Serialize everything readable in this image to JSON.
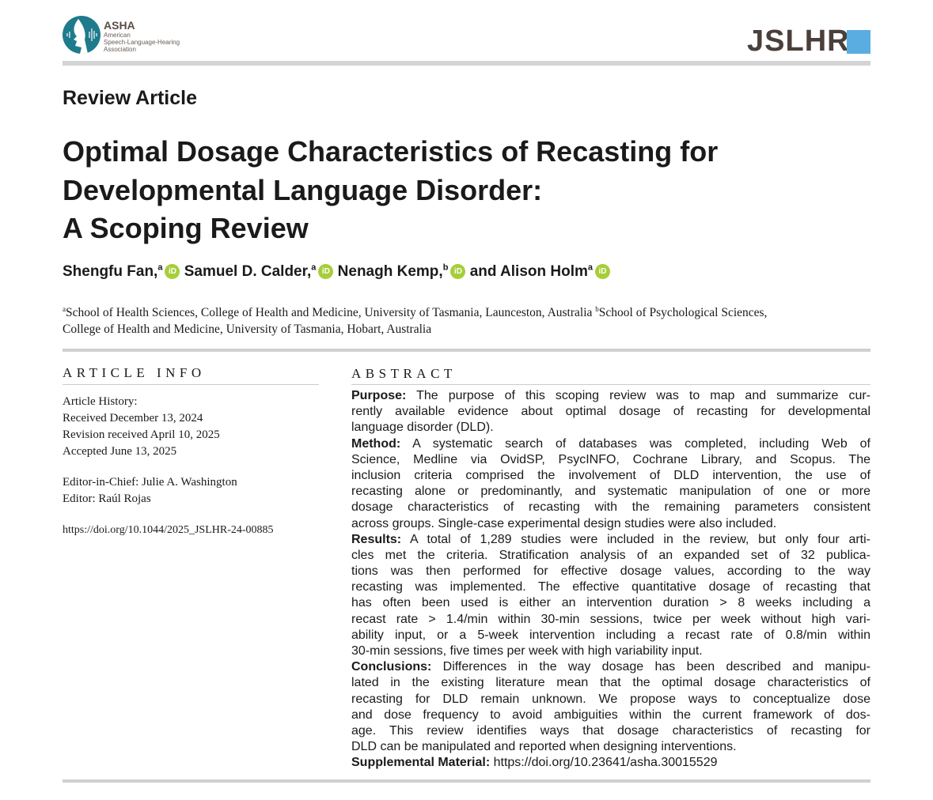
{
  "header": {
    "publisher_logo": "ASHA",
    "publisher_name_lines": [
      "American",
      "Speech-Language-Hearing",
      "Association"
    ],
    "journal_logo": "JSLHR",
    "colors": {
      "teal": "#1e7b8c",
      "journal_text": "#4a3f3a",
      "journal_square": "#5aade0"
    }
  },
  "article_type": "Review Article",
  "title_lines": [
    "Optimal Dosage Characteristics of Recasting for",
    "Developmental Language Disorder:",
    "A Scoping Review"
  ],
  "authors": [
    {
      "name": "Shengfu Fan,",
      "sup": "a"
    },
    {
      "name": "Samuel D. Calder,",
      "sup": "a"
    },
    {
      "name": "Nenagh Kemp,",
      "sup": "b"
    },
    {
      "name": "and Alison Holm",
      "sup": "a"
    }
  ],
  "orcid_label": "iD",
  "affiliations": {
    "a_sup": "a",
    "a": "School of Health Sciences, College of Health and Medicine, University of Tasmania, Launceston, Australia",
    "b_sup": "b",
    "b_line1": "School of Psychological Sciences,",
    "b_line2": "College of Health and Medicine, University of Tasmania, Hobart, Australia"
  },
  "article_info": {
    "heading": "ARTICLE INFO",
    "history_label": "Article History:",
    "received": "Received December 13, 2024",
    "revised": "Revision received April 10, 2025",
    "accepted": "Accepted June 13, 2025",
    "editor_in_chief": "Editor-in-Chief: Julie A. Washington",
    "editor": "Editor: Raúl Rojas",
    "doi": "https://doi.org/10.1044/2025_JSLHR-24-00885"
  },
  "abstract": {
    "heading": "ABSTRACT",
    "sections": [
      {
        "label": "Purpose:",
        "lines": [
          " The purpose of this scoping review was to map and summarize cur-",
          "rently available evidence about optimal dosage of recasting for developmental",
          "language disorder (DLD)."
        ]
      },
      {
        "label": "Method:",
        "lines": [
          " A systematic search of databases was completed, including Web of",
          "Science, Medline via OvidSP, PsycINFO, Cochrane Library, and Scopus. The",
          "inclusion criteria comprised the involvement of DLD intervention, the use of",
          "recasting alone or predominantly, and systematic manipulation of one or more",
          "dosage characteristics of recasting with the remaining parameters consistent",
          "across groups. Single-case experimental design studies were also included."
        ]
      },
      {
        "label": "Results:",
        "lines": [
          " A total of 1,289 studies were included in the review, but only four arti-",
          "cles met the criteria. Stratification analysis of an expanded set of 32 publica-",
          "tions was then performed for effective dosage values, according to the way",
          "recasting was implemented. The effective quantitative dosage of recasting that",
          "has often been used is either an intervention duration > 8 weeks including a",
          "recast rate > 1.4/min within 30-min sessions, twice per week without high vari-",
          "ability input, or a 5-week intervention including a recast rate of 0.8/min within",
          "30-min sessions, five times per week with high variability input."
        ]
      },
      {
        "label": "Conclusions:",
        "lines": [
          " Differences in the way dosage has been described and manipu-",
          "lated in the existing literature mean that the optimal dosage characteristics of",
          "recasting for DLD remain unknown. We propose ways to conceptualize dose",
          "and dose frequency to avoid ambiguities within the current framework of dos-",
          "age. This review identifies ways that dosage characteristics of recasting for",
          "DLD can be manipulated and reported when designing interventions."
        ]
      },
      {
        "label": "Supplemental Material:",
        "lines": [
          " https://doi.org/10.23641/asha.30015529"
        ]
      }
    ]
  }
}
